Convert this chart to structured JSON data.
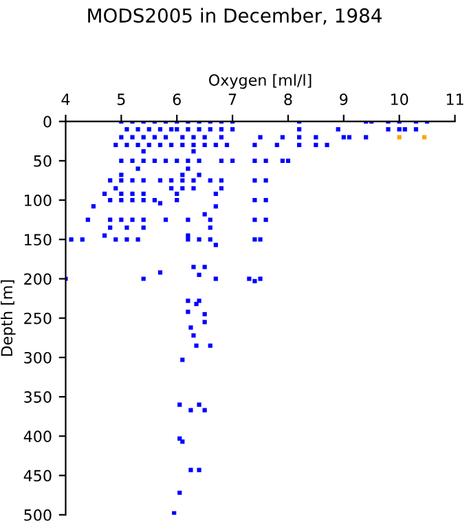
{
  "chart_data": {
    "type": "scatter",
    "title": "MODS2005 in December, 1984",
    "xlabel": "Oxygen [ml/l]",
    "ylabel": "Depth [m]",
    "xlim": [
      4,
      11
    ],
    "xticks": [
      4,
      5,
      6,
      7,
      8,
      9,
      10,
      11
    ],
    "ylim": [
      500,
      0
    ],
    "yticks": [
      0,
      50,
      100,
      150,
      200,
      250,
      300,
      350,
      400,
      450,
      500
    ],
    "marker": "square",
    "grid": false,
    "legend": false,
    "series": [
      {
        "color": "#0000ff",
        "x": [
          5.0,
          5.2,
          5.4,
          5.6,
          5.8,
          6.0,
          6.2,
          6.4,
          6.6,
          6.8,
          7.0,
          8.2,
          9.4,
          9.5,
          9.8,
          10.0,
          10.3,
          10.5,
          5.1,
          5.3,
          5.5,
          5.7,
          5.9,
          6.0,
          6.2,
          6.4,
          6.6,
          6.8,
          7.0,
          8.2,
          8.9,
          9.8,
          10.0,
          10.1,
          10.3,
          5.0,
          5.2,
          5.4,
          5.6,
          5.8,
          6.1,
          6.3,
          6.5,
          6.8,
          7.5,
          7.9,
          8.2,
          8.5,
          9.0,
          9.1,
          9.4,
          4.9,
          5.1,
          5.3,
          5.5,
          5.7,
          5.9,
          6.1,
          6.3,
          6.5,
          6.7,
          6.9,
          7.4,
          7.8,
          8.2,
          8.5,
          8.7,
          5.4,
          6.3,
          5.0,
          5.2,
          5.4,
          5.6,
          5.8,
          6.0,
          6.2,
          6.4,
          6.8,
          7.0,
          7.4,
          7.6,
          7.9,
          8.0,
          5.3,
          6.2,
          5.0,
          6.1,
          6.4,
          4.8,
          5.0,
          5.2,
          5.4,
          5.7,
          5.9,
          6.1,
          6.3,
          6.6,
          6.8,
          7.4,
          7.6,
          4.9,
          5.9,
          6.1,
          6.3,
          6.8,
          4.7,
          5.0,
          5.2,
          5.4,
          6.0,
          6.7,
          4.8,
          5.0,
          5.2,
          5.4,
          5.6,
          6.0,
          7.4,
          7.6,
          5.7,
          4.5,
          6.7,
          6.5,
          4.4,
          4.8,
          5.0,
          5.2,
          5.4,
          5.8,
          6.2,
          6.6,
          7.4,
          7.6,
          4.8,
          5.1,
          5.4,
          6.6,
          4.7,
          6.2,
          4.1,
          4.3,
          4.9,
          5.1,
          5.3,
          6.2,
          6.4,
          6.6,
          7.4,
          7.5,
          6.7,
          6.3,
          6.5,
          5.7,
          6.4,
          4.0,
          5.4,
          6.7,
          7.3,
          7.5,
          7.4,
          6.2,
          6.4,
          6.35,
          6.2,
          6.5,
          6.5,
          6.25,
          6.3,
          6.35,
          6.6,
          6.1,
          6.05,
          6.4,
          6.25,
          6.5,
          6.05,
          6.1,
          6.25,
          6.4,
          6.05,
          5.95
        ],
        "values": [
          0,
          0,
          0,
          0,
          0,
          0,
          0,
          0,
          0,
          0,
          0,
          0,
          0,
          0,
          0,
          0,
          0,
          0,
          10,
          10,
          10,
          10,
          10,
          10,
          10,
          10,
          10,
          10,
          10,
          10,
          10,
          10,
          10,
          10,
          10,
          20,
          20,
          20,
          20,
          20,
          20,
          20,
          20,
          20,
          20,
          20,
          20,
          20,
          20,
          20,
          20,
          30,
          30,
          30,
          30,
          30,
          30,
          30,
          30,
          30,
          30,
          30,
          30,
          30,
          30,
          30,
          30,
          38,
          38,
          50,
          50,
          50,
          50,
          50,
          50,
          50,
          50,
          50,
          50,
          50,
          50,
          50,
          50,
          60,
          60,
          68,
          68,
          68,
          75,
          75,
          75,
          75,
          75,
          75,
          75,
          75,
          75,
          75,
          75,
          75,
          85,
          85,
          85,
          85,
          85,
          92,
          92,
          92,
          92,
          92,
          92,
          100,
          100,
          100,
          100,
          100,
          100,
          100,
          100,
          104,
          108,
          108,
          118,
          125,
          125,
          125,
          125,
          125,
          125,
          125,
          125,
          125,
          125,
          135,
          135,
          135,
          135,
          145,
          145,
          150,
          150,
          150,
          150,
          150,
          150,
          150,
          150,
          150,
          150,
          157,
          185,
          185,
          192,
          195,
          200,
          200,
          200,
          200,
          200,
          203,
          228,
          228,
          232,
          242,
          245,
          255,
          262,
          272,
          285,
          285,
          303,
          360,
          360,
          367,
          367,
          403,
          407,
          443,
          443,
          472,
          498
        ]
      },
      {
        "color": "#ffa500",
        "x": [
          10.0,
          10.45
        ],
        "values": [
          20,
          20
        ]
      }
    ]
  }
}
